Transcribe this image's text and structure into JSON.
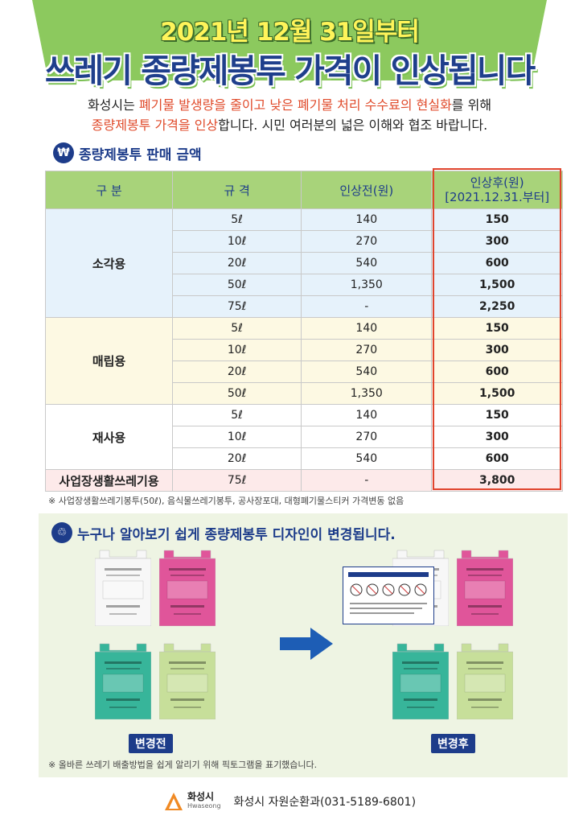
{
  "header": {
    "date_line": "2021년 12월 31일부터",
    "title": "쓰레기 종량제봉투 가격이 인상됩니다"
  },
  "intro": {
    "p1_a": "화성시는 ",
    "p1_red": "폐기물 발생량을 줄이고 낮은 폐기물 처리 수수료의 현실화",
    "p1_b": "를 위해",
    "p2_red": "종량제봉투 가격을 인상",
    "p2_b": "합니다. 시민 여러분의 넓은 이해와 협조 바랍니다."
  },
  "price_section": {
    "heading": "종량제봉투 판매 금액",
    "icon": "coin-icon",
    "columns": [
      "구  분",
      "규  격",
      "인상전(원)",
      "인상후(원)",
      "[2021.12.31.부터]"
    ],
    "groups": [
      {
        "category": "소각용",
        "rows": [
          {
            "size": "5ℓ",
            "before": "140",
            "after": "150"
          },
          {
            "size": "10ℓ",
            "before": "270",
            "after": "300"
          },
          {
            "size": "20ℓ",
            "before": "540",
            "after": "600"
          },
          {
            "size": "50ℓ",
            "before": "1,350",
            "after": "1,500"
          },
          {
            "size": "75ℓ",
            "before": "-",
            "after": "2,250"
          }
        ]
      },
      {
        "category": "매립용",
        "rows": [
          {
            "size": "5ℓ",
            "before": "140",
            "after": "150"
          },
          {
            "size": "10ℓ",
            "before": "270",
            "after": "300"
          },
          {
            "size": "20ℓ",
            "before": "540",
            "after": "600"
          },
          {
            "size": "50ℓ",
            "before": "1,350",
            "after": "1,500"
          }
        ]
      },
      {
        "category": "재사용",
        "rows": [
          {
            "size": "5ℓ",
            "before": "140",
            "after": "150"
          },
          {
            "size": "10ℓ",
            "before": "270",
            "after": "300"
          },
          {
            "size": "20ℓ",
            "before": "540",
            "after": "600"
          }
        ]
      },
      {
        "category": "사업장생활쓰레기용",
        "rows": [
          {
            "size": "75ℓ",
            "before": "-",
            "after": "3,800"
          }
        ]
      }
    ],
    "note": "※ 사업장생활쓰레기봉투(50ℓ), 음식물쓰레기봉투, 공사장포대, 대형폐기물스티커 가격변동 없음"
  },
  "design_section": {
    "heading": "누구나 알아보기 쉽게 종량제봉투 디자인이 변경됩니다.",
    "icon": "bag-icon",
    "before_label": "변경전",
    "after_label": "변경후",
    "note": "※ 올바른 쓰레기 배출방법을 쉽게 알리기 위해 픽토그램을 표기했습니다.",
    "arrow_icon": "arrow-right-icon",
    "colors": {
      "white_bag": "#f7f7f7",
      "pink_bag": "#e0559a",
      "green_bag": "#37b59a",
      "lime_bag": "#c7df9a"
    }
  },
  "footer": {
    "logo_name": "화성시",
    "logo_sub": "Hwaseong",
    "contact": "화성시 자원순환과(031-5189-6801)"
  },
  "colors": {
    "accent": "#1d3c8a",
    "highlight_red": "#e0442d",
    "header_green": "#7ac052"
  }
}
